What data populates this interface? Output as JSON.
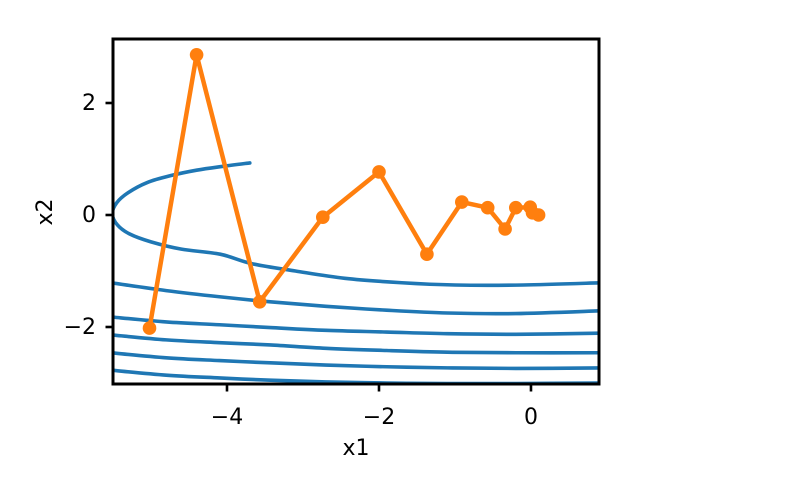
{
  "chart_data": {
    "type": "line",
    "title": "",
    "xlabel": "x1",
    "ylabel": "x2",
    "xlim": [
      -5.5,
      0.895
    ],
    "ylim": [
      -3.018,
      3.143
    ],
    "grid": false,
    "legend_position": "none",
    "xticks": {
      "values": [
        -4,
        -2,
        0
      ],
      "labels": [
        "−4",
        "−2",
        "0"
      ]
    },
    "yticks": {
      "values": [
        2,
        0,
        -2
      ],
      "labels": [
        "2",
        "0",
        "−2"
      ]
    },
    "colors": {
      "contour_line": "#1f77b4",
      "path_line": "#ff7f0e",
      "axes": "#000000",
      "background": "#ffffff"
    },
    "series": [
      {
        "name": "level-set-contours",
        "type": "line",
        "color": "#1f77b4",
        "linewidth": 3.6,
        "lines": [
          [
            [
              -3.7,
              0.93
            ],
            [
              -4.05,
              0.87
            ],
            [
              -4.4,
              0.8
            ],
            [
              -4.75,
              0.7
            ],
            [
              -5.05,
              0.58
            ],
            [
              -5.3,
              0.4
            ],
            [
              -5.45,
              0.22
            ],
            [
              -5.51,
              0.02
            ],
            [
              -5.44,
              -0.18
            ],
            [
              -5.28,
              -0.34
            ],
            [
              -5.0,
              -0.48
            ],
            [
              -4.6,
              -0.61
            ],
            [
              -4.09,
              -0.7
            ],
            [
              -3.67,
              -0.87
            ],
            [
              -3.1,
              -1.0
            ],
            [
              -2.45,
              -1.13
            ],
            [
              -1.7,
              -1.21
            ],
            [
              -1.0,
              -1.25
            ],
            [
              -0.1,
              -1.25
            ],
            [
              0.93,
              -1.21
            ]
          ],
          [
            [
              -5.53,
              -1.21
            ],
            [
              -4.8,
              -1.35
            ],
            [
              -4.1,
              -1.46
            ],
            [
              -3.43,
              -1.55
            ],
            [
              -2.7,
              -1.63
            ],
            [
              -1.9,
              -1.7
            ],
            [
              -1.1,
              -1.75
            ],
            [
              -0.2,
              -1.76
            ],
            [
              0.93,
              -1.71
            ]
          ],
          [
            [
              -5.53,
              -1.82
            ],
            [
              -4.8,
              -1.91
            ],
            [
              -4.1,
              -1.96
            ],
            [
              -3.43,
              -2.01
            ],
            [
              -2.7,
              -2.06
            ],
            [
              -1.9,
              -2.09
            ],
            [
              -1.1,
              -2.12
            ],
            [
              -0.2,
              -2.13
            ],
            [
              0.93,
              -2.11
            ]
          ],
          [
            [
              -5.53,
              -2.14
            ],
            [
              -4.8,
              -2.23
            ],
            [
              -4.1,
              -2.28
            ],
            [
              -3.43,
              -2.32
            ],
            [
              -2.7,
              -2.38
            ],
            [
              -1.9,
              -2.42
            ],
            [
              -1.1,
              -2.45
            ],
            [
              -0.2,
              -2.46
            ],
            [
              0.93,
              -2.46
            ]
          ],
          [
            [
              -5.53,
              -2.46
            ],
            [
              -4.8,
              -2.55
            ],
            [
              -4.1,
              -2.6
            ],
            [
              -3.43,
              -2.64
            ],
            [
              -2.7,
              -2.68
            ],
            [
              -1.9,
              -2.71
            ],
            [
              -1.1,
              -2.73
            ],
            [
              -0.2,
              -2.74
            ],
            [
              0.93,
              -2.73
            ]
          ],
          [
            [
              -5.53,
              -2.77
            ],
            [
              -4.8,
              -2.86
            ],
            [
              -4.1,
              -2.91
            ],
            [
              -3.43,
              -2.95
            ],
            [
              -2.7,
              -2.98
            ],
            [
              -1.9,
              -3.0
            ],
            [
              -1.1,
              -3.01
            ],
            [
              -0.2,
              -3.01
            ],
            [
              0.93,
              -3.0
            ]
          ]
        ]
      },
      {
        "name": "optimization-path",
        "type": "line+markers",
        "color": "#ff7f0e",
        "linewidth": 4.5,
        "markersize": 6.8,
        "points": [
          [
            -5.02,
            -2.02
          ],
          [
            -4.4,
            2.86
          ],
          [
            -3.57,
            -1.55
          ],
          [
            -2.74,
            -0.04
          ],
          [
            -2.0,
            0.77
          ],
          [
            -1.37,
            -0.7
          ],
          [
            -0.91,
            0.23
          ],
          [
            -0.57,
            0.13
          ],
          [
            -0.34,
            -0.25
          ],
          [
            -0.2,
            0.13
          ],
          [
            -0.01,
            0.14
          ],
          [
            0.1,
            0.0
          ],
          [
            0.02,
            0.04
          ]
        ]
      }
    ]
  }
}
